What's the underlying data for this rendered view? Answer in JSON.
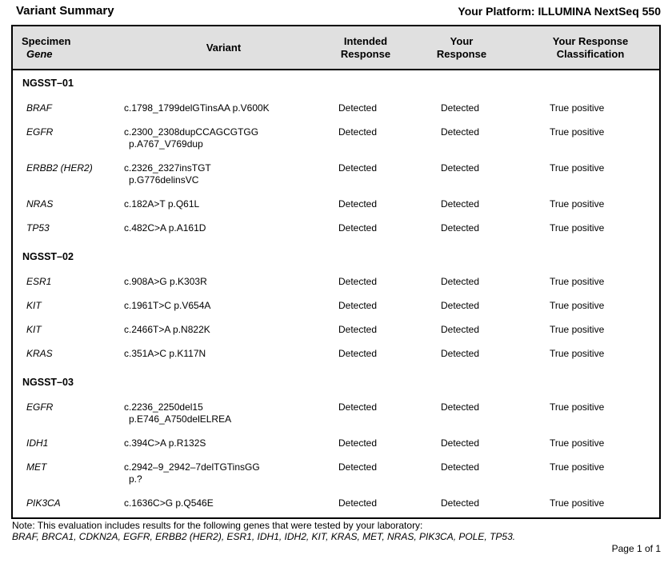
{
  "header": {
    "title": "Variant Summary",
    "platform": "Your Platform: ILLUMINA NextSeq 550"
  },
  "colors": {
    "table_header_bg": "#e0e0e0",
    "table_border": "#000000",
    "text": "#000000",
    "page_bg": "#ffffff"
  },
  "table": {
    "headers": {
      "specimen": "Specimen",
      "gene": "Gene",
      "variant": "Variant",
      "intended_l1": "Intended",
      "intended_l2": "Response",
      "your_l1": "Your",
      "your_l2": "Response",
      "class_l1": "Your Response",
      "class_l2": "Classification"
    },
    "groups": [
      {
        "specimen": "NGSST–01",
        "rows": [
          {
            "gene": "BRAF",
            "variant_lines": [
              "c.1798_1799delGTinsAA p.V600K"
            ],
            "intended": "Detected",
            "your": "Detected",
            "classification": "True positive"
          },
          {
            "gene": "EGFR",
            "variant_lines": [
              "c.2300_2308dupCCAGCGTGG",
              "p.A767_V769dup"
            ],
            "intended": "Detected",
            "your": "Detected",
            "classification": "True positive"
          },
          {
            "gene": "ERBB2 (HER2)",
            "variant_lines": [
              "c.2326_2327insTGT",
              "p.G776delinsVC"
            ],
            "intended": "Detected",
            "your": "Detected",
            "classification": "True positive"
          },
          {
            "gene": "NRAS",
            "variant_lines": [
              "c.182A>T p.Q61L"
            ],
            "intended": "Detected",
            "your": "Detected",
            "classification": "True positive"
          },
          {
            "gene": "TP53",
            "variant_lines": [
              "c.482C>A p.A161D"
            ],
            "intended": "Detected",
            "your": "Detected",
            "classification": "True positive"
          }
        ]
      },
      {
        "specimen": "NGSST–02",
        "rows": [
          {
            "gene": "ESR1",
            "variant_lines": [
              "c.908A>G p.K303R"
            ],
            "intended": "Detected",
            "your": "Detected",
            "classification": "True positive"
          },
          {
            "gene": "KIT",
            "variant_lines": [
              "c.1961T>C p.V654A"
            ],
            "intended": "Detected",
            "your": "Detected",
            "classification": "True positive"
          },
          {
            "gene": "KIT",
            "variant_lines": [
              "c.2466T>A p.N822K"
            ],
            "intended": "Detected",
            "your": "Detected",
            "classification": "True positive"
          },
          {
            "gene": "KRAS",
            "variant_lines": [
              "c.351A>C p.K117N"
            ],
            "intended": "Detected",
            "your": "Detected",
            "classification": "True positive"
          }
        ]
      },
      {
        "specimen": "NGSST–03",
        "rows": [
          {
            "gene": "EGFR",
            "variant_lines": [
              "c.2236_2250del15",
              "p.E746_A750delELREA"
            ],
            "intended": "Detected",
            "your": "Detected",
            "classification": "True positive"
          },
          {
            "gene": "IDH1",
            "variant_lines": [
              "c.394C>A p.R132S"
            ],
            "intended": "Detected",
            "your": "Detected",
            "classification": "True positive"
          },
          {
            "gene": "MET",
            "variant_lines": [
              "c.2942–9_2942–7delTGTinsGG",
              "p.?"
            ],
            "intended": "Detected",
            "your": "Detected",
            "classification": "True positive"
          },
          {
            "gene": "PIK3CA",
            "variant_lines": [
              "c.1636C>G p.Q546E"
            ],
            "intended": "Detected",
            "your": "Detected",
            "classification": "True positive"
          }
        ]
      }
    ]
  },
  "footer": {
    "note": "Note: This evaluation includes results for the following genes that were tested by your laboratory:",
    "gene_list": "BRAF, BRCA1, CDKN2A, EGFR, ERBB2 (HER2), ESR1, IDH1, IDH2, KIT, KRAS, MET, NRAS, PIK3CA, POLE, TP53.",
    "page": "Page 1 of 1"
  }
}
